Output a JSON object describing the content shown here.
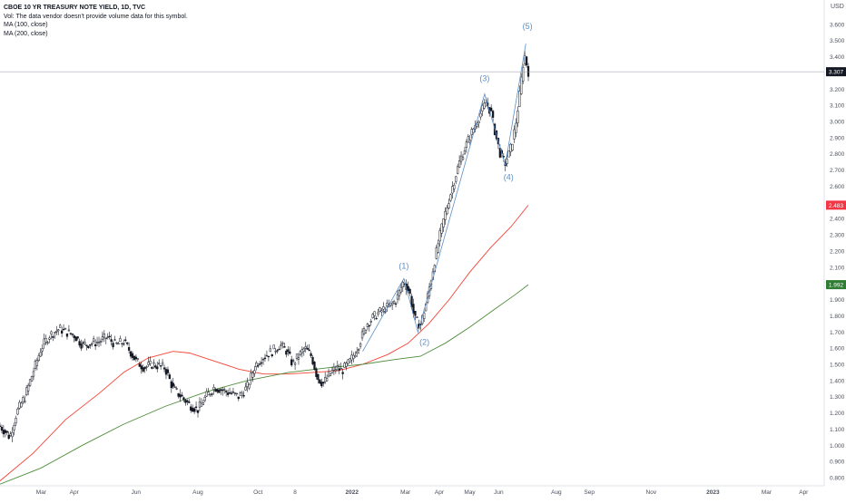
{
  "legend": {
    "title": "CBOE 10 YR TREASURY NOTE YIELD, 1D, TVC",
    "vol_note": "Vol: The data vendor doesn't provide volume data for this symbol.",
    "ma100": "MA (100, close)",
    "ma200": "MA (200, close)"
  },
  "colors": {
    "candle": "#131722",
    "ma100": "#f44336",
    "ma200": "#4e8c3a",
    "wave": "#5b8fc9",
    "price_badge": "#131722",
    "ma100_badge": "#f23645",
    "ma200_badge": "#2e7d32",
    "axis_text": "#4a4f5c",
    "crosshair": "#9598a1"
  },
  "chart_data": {
    "type": "candlestick",
    "title": "CBOE 10 YR TREASURY NOTE YIELD, 1D, TVC",
    "currency_label": "USD",
    "ylim": [
      0.75,
      3.75
    ],
    "y_ticks": [
      "0.800",
      "0.900",
      "1.000",
      "1.100",
      "1.200",
      "1.300",
      "1.400",
      "1.500",
      "1.600",
      "1.700",
      "1.800",
      "1.900",
      "2.000",
      "2.100",
      "2.200",
      "2.300",
      "2.400",
      "2.500",
      "2.600",
      "2.700",
      "2.800",
      "2.900",
      "3.000",
      "3.100",
      "3.200",
      "3.300",
      "3.400",
      "3.500",
      "3.600",
      "3.700"
    ],
    "x_ticks": [
      {
        "label": "Mar",
        "t": 0.05
      },
      {
        "label": "Apr",
        "t": 0.09
      },
      {
        "label": "Jun",
        "t": 0.165
      },
      {
        "label": "Aug",
        "t": 0.24
      },
      {
        "label": "Oct",
        "t": 0.313
      },
      {
        "label": "8",
        "t": 0.358
      },
      {
        "label": "2022",
        "t": 0.427
      },
      {
        "label": "Mar",
        "t": 0.492
      },
      {
        "label": "Apr",
        "t": 0.533
      },
      {
        "label": "May",
        "t": 0.57
      },
      {
        "label": "Jun",
        "t": 0.605
      },
      {
        "label": "Aug",
        "t": 0.675
      },
      {
        "label": "Sep",
        "t": 0.715
      },
      {
        "label": "Nov",
        "t": 0.79
      },
      {
        "label": "2023",
        "t": 0.865
      },
      {
        "label": "Mar",
        "t": 0.93
      },
      {
        "label": "Apr",
        "t": 0.975
      }
    ],
    "last_price": "3.307",
    "ma100_last": "2.483",
    "ma200_last": "1.992",
    "price_keypoints": [
      [
        0.0,
        1.12
      ],
      [
        0.012,
        1.05
      ],
      [
        0.02,
        1.2
      ],
      [
        0.03,
        1.3
      ],
      [
        0.04,
        1.45
      ],
      [
        0.05,
        1.6
      ],
      [
        0.06,
        1.68
      ],
      [
        0.072,
        1.72
      ],
      [
        0.08,
        1.7
      ],
      [
        0.09,
        1.68
      ],
      [
        0.1,
        1.62
      ],
      [
        0.11,
        1.63
      ],
      [
        0.12,
        1.64
      ],
      [
        0.13,
        1.67
      ],
      [
        0.14,
        1.62
      ],
      [
        0.15,
        1.64
      ],
      [
        0.158,
        1.58
      ],
      [
        0.165,
        1.52
      ],
      [
        0.175,
        1.48
      ],
      [
        0.185,
        1.5
      ],
      [
        0.2,
        1.48
      ],
      [
        0.21,
        1.35
      ],
      [
        0.22,
        1.3
      ],
      [
        0.23,
        1.25
      ],
      [
        0.24,
        1.22
      ],
      [
        0.25,
        1.3
      ],
      [
        0.26,
        1.36
      ],
      [
        0.27,
        1.34
      ],
      [
        0.28,
        1.32
      ],
      [
        0.29,
        1.3
      ],
      [
        0.3,
        1.36
      ],
      [
        0.31,
        1.5
      ],
      [
        0.32,
        1.55
      ],
      [
        0.33,
        1.58
      ],
      [
        0.34,
        1.62
      ],
      [
        0.348,
        1.58
      ],
      [
        0.355,
        1.5
      ],
      [
        0.362,
        1.55
      ],
      [
        0.37,
        1.6
      ],
      [
        0.378,
        1.55
      ],
      [
        0.385,
        1.42
      ],
      [
        0.392,
        1.38
      ],
      [
        0.4,
        1.44
      ],
      [
        0.408,
        1.48
      ],
      [
        0.415,
        1.46
      ],
      [
        0.425,
        1.52
      ],
      [
        0.435,
        1.62
      ],
      [
        0.445,
        1.75
      ],
      [
        0.455,
        1.8
      ],
      [
        0.465,
        1.84
      ],
      [
        0.473,
        1.86
      ],
      [
        0.481,
        1.9
      ],
      [
        0.49,
        2.02
      ],
      [
        0.497,
        1.94
      ],
      [
        0.503,
        1.78
      ],
      [
        0.51,
        1.74
      ],
      [
        0.518,
        1.9
      ],
      [
        0.525,
        2.08
      ],
      [
        0.533,
        2.28
      ],
      [
        0.541,
        2.45
      ],
      [
        0.55,
        2.62
      ],
      [
        0.558,
        2.76
      ],
      [
        0.566,
        2.86
      ],
      [
        0.574,
        2.95
      ],
      [
        0.582,
        3.04
      ],
      [
        0.59,
        3.12
      ],
      [
        0.596,
        3.05
      ],
      [
        0.602,
        2.9
      ],
      [
        0.608,
        2.78
      ],
      [
        0.613,
        2.74
      ],
      [
        0.619,
        2.82
      ],
      [
        0.625,
        2.96
      ],
      [
        0.63,
        3.15
      ],
      [
        0.636,
        3.42
      ],
      [
        0.641,
        3.307
      ]
    ],
    "series": [
      {
        "name": "MA (100, close)",
        "points": [
          [
            0.0,
            0.78
          ],
          [
            0.04,
            0.95
          ],
          [
            0.08,
            1.16
          ],
          [
            0.12,
            1.32
          ],
          [
            0.15,
            1.45
          ],
          [
            0.18,
            1.54
          ],
          [
            0.21,
            1.58
          ],
          [
            0.23,
            1.57
          ],
          [
            0.26,
            1.52
          ],
          [
            0.29,
            1.47
          ],
          [
            0.32,
            1.44
          ],
          [
            0.35,
            1.44
          ],
          [
            0.38,
            1.45
          ],
          [
            0.41,
            1.46
          ],
          [
            0.44,
            1.5
          ],
          [
            0.47,
            1.56
          ],
          [
            0.495,
            1.63
          ],
          [
            0.52,
            1.75
          ],
          [
            0.545,
            1.9
          ],
          [
            0.57,
            2.07
          ],
          [
            0.595,
            2.22
          ],
          [
            0.62,
            2.35
          ],
          [
            0.641,
            2.483
          ]
        ]
      },
      {
        "name": "MA (200, close)",
        "points": [
          [
            0.0,
            0.76
          ],
          [
            0.05,
            0.86
          ],
          [
            0.1,
            1.0
          ],
          [
            0.15,
            1.13
          ],
          [
            0.2,
            1.24
          ],
          [
            0.25,
            1.33
          ],
          [
            0.3,
            1.4
          ],
          [
            0.35,
            1.45
          ],
          [
            0.4,
            1.48
          ],
          [
            0.44,
            1.5
          ],
          [
            0.48,
            1.53
          ],
          [
            0.51,
            1.55
          ],
          [
            0.54,
            1.63
          ],
          [
            0.57,
            1.73
          ],
          [
            0.6,
            1.84
          ],
          [
            0.625,
            1.93
          ],
          [
            0.641,
            1.992
          ]
        ]
      }
    ],
    "wave_points": [
      [
        0.44,
        1.58
      ],
      [
        0.49,
        2.03
      ],
      [
        0.507,
        1.7
      ],
      [
        0.588,
        3.17
      ],
      [
        0.613,
        2.73
      ],
      [
        0.638,
        3.48
      ]
    ],
    "wave_labels": [
      {
        "text": "(1)",
        "t": 0.49,
        "v": 2.09
      },
      {
        "text": "(2)",
        "t": 0.515,
        "v": 1.62
      },
      {
        "text": "(3)",
        "t": 0.588,
        "v": 3.25
      },
      {
        "text": "(4)",
        "t": 0.617,
        "v": 2.64
      },
      {
        "text": "(5)",
        "t": 0.64,
        "v": 3.57
      }
    ]
  }
}
